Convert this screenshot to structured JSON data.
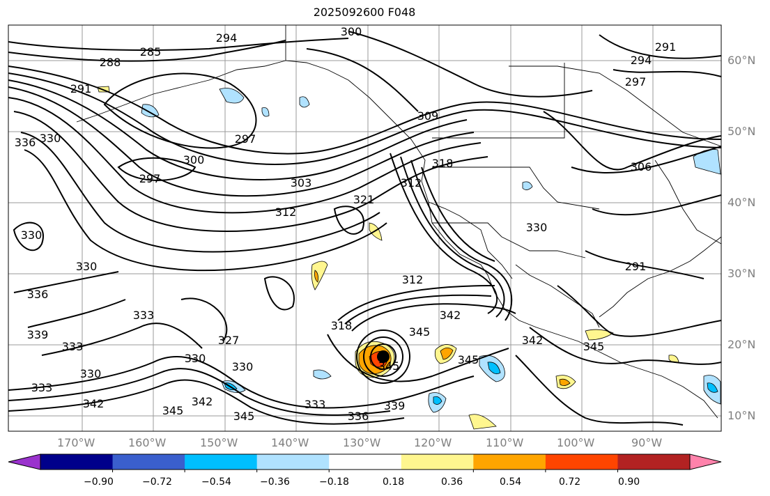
{
  "title": "2025092600 F048",
  "map": {
    "projection": "PlateCarree",
    "lon_range": [
      -180,
      -80
    ],
    "lat_range": [
      7.5,
      65
    ],
    "gridlines": true,
    "field": "isentropic contours (K) with shaded anomaly",
    "lon_labels": [
      "170°W",
      "160°W",
      "150°W",
      "140°W",
      "130°W",
      "120°W",
      "110°W",
      "100°W",
      "90°W"
    ],
    "lat_labels": [
      "60°N",
      "50°N",
      "40°N",
      "30°N",
      "20°N",
      "10°N"
    ],
    "contour_labels": [
      "285",
      "288",
      "291",
      "294",
      "297",
      "300",
      "303",
      "306",
      "309",
      "312",
      "318",
      "321",
      "327",
      "330",
      "333",
      "336",
      "339",
      "342",
      "345"
    ],
    "storm_marker": "black-dot"
  },
  "colorbar": {
    "ticks": [
      "−0.90",
      "−0.72",
      "−0.54",
      "−0.36",
      "−0.18",
      "0.18",
      "0.36",
      "0.54",
      "0.72",
      "0.90"
    ],
    "colors": [
      "#9a32cd",
      "#00008b",
      "#3a5fcd",
      "#00bfff",
      "#b0e2ff",
      "#ffffff",
      "#fff68f",
      "#ffa500",
      "#ff4500",
      "#b22222",
      "#ff82ab"
    ],
    "extend": "both"
  }
}
